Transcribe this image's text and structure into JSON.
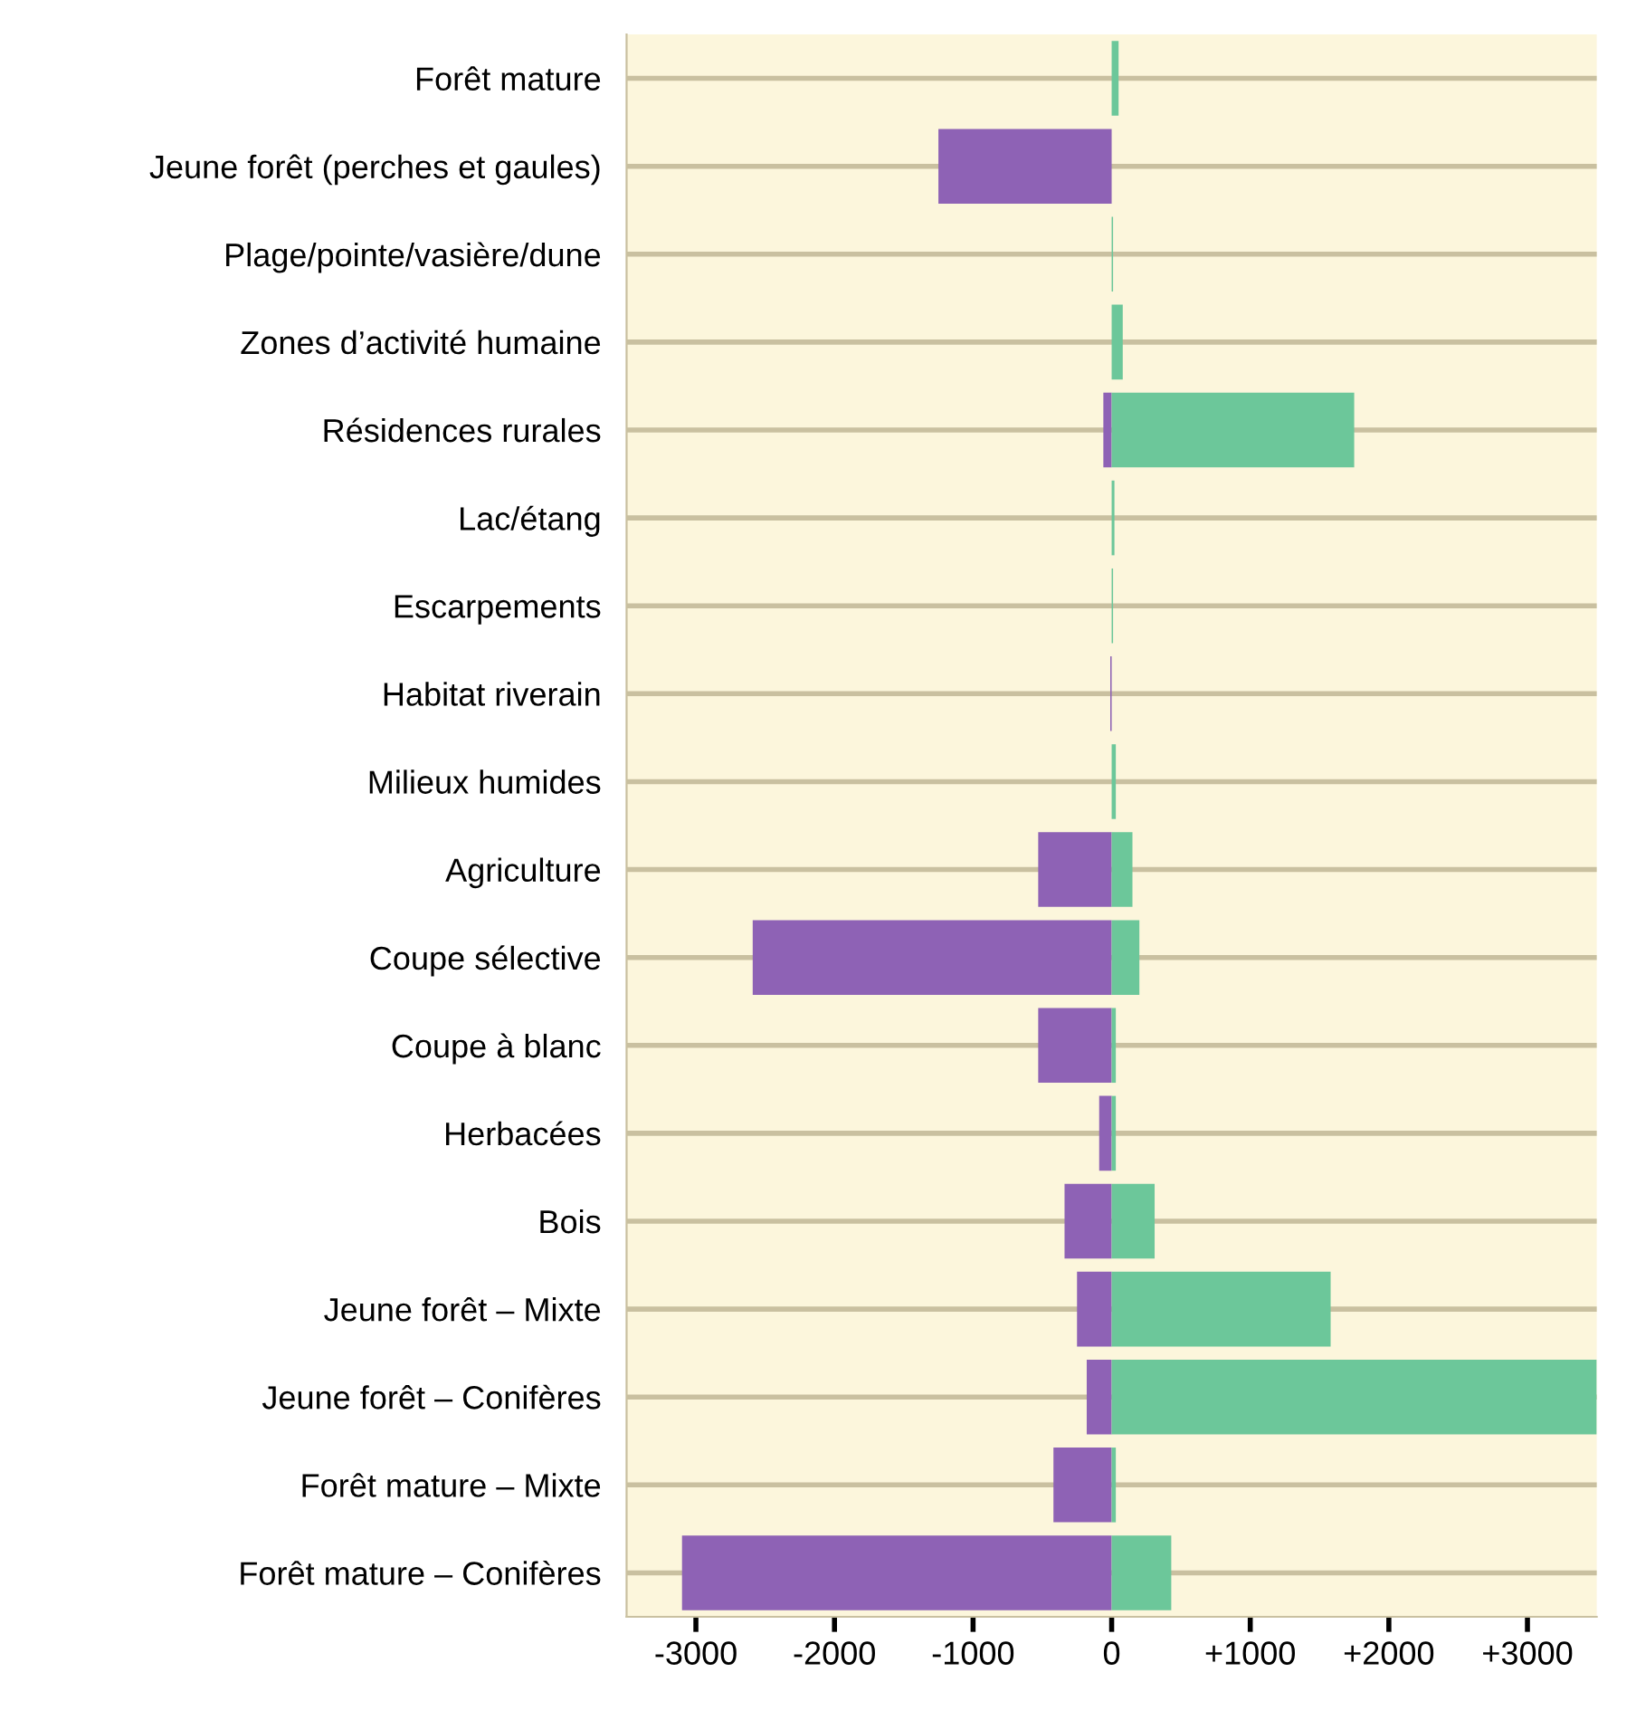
{
  "chart_data": {
    "type": "bar",
    "orientation": "horizontal",
    "stacked": true,
    "categories": [
      "Forêt mature",
      "Jeune forêt (perches et gaules)",
      "Plage/pointe/vasière/dune",
      "Zones d’activité humaine",
      "Résidences rurales",
      "Lac/étang",
      "Escarpements",
      "Habitat riverain",
      "Milieux humides",
      "Agriculture",
      "Coupe sélective",
      "Coupe à blanc",
      "Herbacées",
      "Bois",
      "Jeune forêt – Mixte",
      "Jeune forêt – Conifères",
      "Forêt mature – Mixte",
      "Forêt mature – Conifères"
    ],
    "series": [
      {
        "color": "#8e62b5",
        "values": [
          0,
          -1250,
          0,
          0,
          -60,
          0,
          0,
          -10,
          0,
          -530,
          -2590,
          -530,
          -90,
          -340,
          -250,
          -180,
          -420,
          -3100
        ]
      },
      {
        "color": "#6cc79a",
        "values": [
          50,
          0,
          10,
          80,
          1750,
          20,
          10,
          0,
          30,
          150,
          200,
          30,
          30,
          310,
          1580,
          3500,
          30,
          430
        ]
      }
    ],
    "xlim": [
      -3500,
      3500
    ],
    "xticks": [
      -3000,
      -2000,
      -1000,
      0,
      {
        "value": 1000,
        "label": "+1000"
      },
      {
        "value": 2000,
        "label": "+2000"
      },
      {
        "value": 3000,
        "label": "+3000"
      }
    ],
    "grid": "y"
  }
}
